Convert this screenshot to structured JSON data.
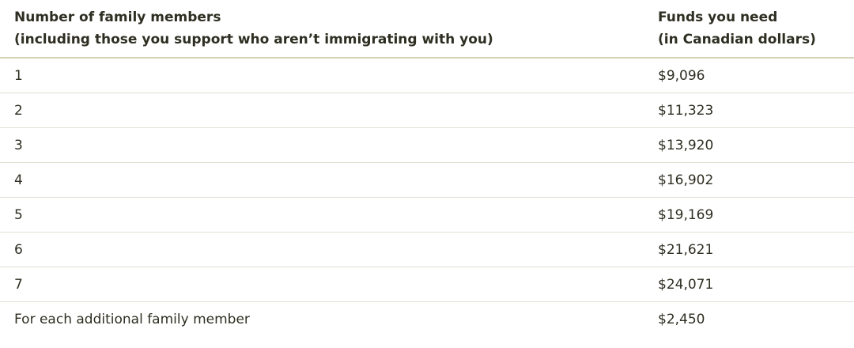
{
  "table": {
    "header": [
      [
        "Number of family members",
        "(including those you support who aren’t immigrating with you)"
      ],
      [
        "Funds you need",
        "(in Canadian dollars)"
      ]
    ],
    "rows": [
      [
        "1",
        "$9,096"
      ],
      [
        "2",
        "$11,323"
      ],
      [
        "3",
        "$13,920"
      ],
      [
        "4",
        "$16,902"
      ],
      [
        "5",
        "$19,169"
      ],
      [
        "6",
        "$21,621"
      ],
      [
        "7",
        "$24,071"
      ],
      [
        "For each additional family member",
        "$2,450"
      ]
    ]
  }
}
